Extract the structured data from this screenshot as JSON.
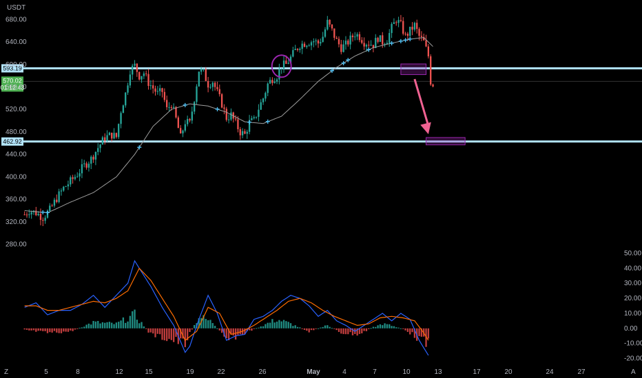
{
  "currency": "USDT",
  "corner_icons": {
    "left": "Z",
    "right": "A"
  },
  "colors": {
    "background": "#000000",
    "up": "#26a69a",
    "down": "#ef5350",
    "levels": "#b3e5fc",
    "sma": "#9e9e9e",
    "macd": "#2962ff",
    "signal": "#ff6d00",
    "highlight": "#9c27b0",
    "arrow": "#f06292",
    "marker": "#4fc3f7",
    "last_price": "#4caf50"
  },
  "chart_data": [
    {
      "type": "candlestick",
      "title": "",
      "ylabel": "USDT",
      "x_labels": [
        "5",
        "8",
        "12",
        "15",
        "19",
        "22",
        "26",
        "May",
        "4",
        "7",
        "10",
        "13",
        "17",
        "20",
        "24",
        "27"
      ],
      "y_ticks": [
        280,
        320,
        360,
        400,
        440,
        480,
        520,
        560,
        600,
        640,
        680
      ],
      "ylim": [
        272,
        705
      ],
      "levels": [
        {
          "value": 593.19,
          "label": "593.19"
        },
        {
          "value": 462.92,
          "label": "462.92"
        }
      ],
      "last_price": {
        "value": 570.02,
        "label": "570.02",
        "countdown": "01:12:43"
      },
      "close_path": [
        [
          0,
          333
        ],
        [
          2,
          340
        ],
        [
          5,
          336
        ],
        [
          8,
          328
        ],
        [
          11,
          341
        ],
        [
          14,
          362
        ],
        [
          17,
          380
        ],
        [
          20,
          392
        ],
        [
          23,
          405
        ],
        [
          26,
          420
        ],
        [
          29,
          432
        ],
        [
          32,
          452
        ],
        [
          35,
          470
        ],
        [
          38,
          475
        ],
        [
          40,
          471
        ],
        [
          42,
          518
        ],
        [
          44,
          548
        ],
        [
          46,
          590
        ],
        [
          48,
          598
        ],
        [
          50,
          580
        ],
        [
          52,
          585
        ],
        [
          54,
          568
        ],
        [
          56,
          558
        ],
        [
          58,
          548
        ],
        [
          60,
          552
        ],
        [
          62,
          520
        ],
        [
          64,
          530
        ],
        [
          66,
          503
        ],
        [
          68,
          470
        ],
        [
          70,
          498
        ],
        [
          72,
          495
        ],
        [
          74,
          540
        ],
        [
          76,
          590
        ],
        [
          78,
          585
        ],
        [
          80,
          565
        ],
        [
          82,
          570
        ],
        [
          84,
          550
        ],
        [
          86,
          530
        ],
        [
          88,
          505
        ],
        [
          90,
          510
        ],
        [
          92,
          495
        ],
        [
          94,
          480
        ],
        [
          96,
          475
        ],
        [
          98,
          497
        ],
        [
          100,
          500
        ],
        [
          102,
          522
        ],
        [
          104,
          540
        ],
        [
          106,
          565
        ],
        [
          108,
          575
        ],
        [
          110,
          580
        ],
        [
          112,
          598
        ],
        [
          114,
          600
        ],
        [
          116,
          612
        ],
        [
          118,
          625
        ],
        [
          120,
          635
        ],
        [
          122,
          638
        ],
        [
          124,
          640
        ],
        [
          126,
          642
        ],
        [
          128,
          638
        ],
        [
          130,
          650
        ],
        [
          132,
          675
        ],
        [
          134,
          660
        ],
        [
          136,
          642
        ],
        [
          138,
          630
        ],
        [
          140,
          635
        ],
        [
          142,
          645
        ],
        [
          144,
          655
        ],
        [
          146,
          650
        ],
        [
          148,
          640
        ],
        [
          150,
          638
        ],
        [
          152,
          635
        ],
        [
          154,
          648
        ],
        [
          156,
          640
        ],
        [
          158,
          645
        ],
        [
          160,
          665
        ],
        [
          162,
          680
        ],
        [
          164,
          670
        ],
        [
          166,
          650
        ],
        [
          168,
          660
        ],
        [
          170,
          670
        ],
        [
          172,
          650
        ],
        [
          174,
          640
        ],
        [
          176,
          615
        ],
        [
          177,
          570
        ],
        [
          178,
          565
        ]
      ],
      "sma_path": [
        [
          0,
          340
        ],
        [
          10,
          336
        ],
        [
          20,
          355
        ],
        [
          30,
          372
        ],
        [
          40,
          400
        ],
        [
          48,
          440
        ],
        [
          56,
          490
        ],
        [
          64,
          520
        ],
        [
          72,
          530
        ],
        [
          80,
          526
        ],
        [
          88,
          515
        ],
        [
          96,
          498
        ],
        [
          104,
          495
        ],
        [
          112,
          508
        ],
        [
          120,
          538
        ],
        [
          128,
          570
        ],
        [
          136,
          595
        ],
        [
          144,
          615
        ],
        [
          152,
          630
        ],
        [
          160,
          638
        ],
        [
          168,
          645
        ],
        [
          174,
          648
        ],
        [
          178,
          632
        ]
      ],
      "markers": [
        8,
        10,
        50,
        70,
        84,
        98,
        106,
        134,
        139,
        141,
        150,
        160,
        164,
        166,
        168
      ],
      "annotations": {
        "circle_at": {
          "x": 112,
          "y": 597
        },
        "box_top": {
          "x0": 164,
          "x1": 175,
          "y0": 582,
          "y1": 601
        },
        "box_target": {
          "x0": 175,
          "x1": 192,
          "y0": 457,
          "y1": 470
        },
        "arrow": {
          "from": [
            170,
            574
          ],
          "to": [
            176,
            476
          ]
        }
      }
    },
    {
      "type": "macd",
      "y_ticks": [
        50,
        40,
        30,
        20,
        10,
        0,
        -10,
        -20
      ],
      "ylim": [
        -23,
        53
      ],
      "macd_path": [
        [
          0,
          14
        ],
        [
          5,
          17
        ],
        [
          10,
          9
        ],
        [
          15,
          12
        ],
        [
          20,
          12
        ],
        [
          25,
          16
        ],
        [
          30,
          22
        ],
        [
          35,
          14
        ],
        [
          40,
          22
        ],
        [
          45,
          30
        ],
        [
          48,
          45
        ],
        [
          50,
          40
        ],
        [
          55,
          28
        ],
        [
          60,
          14
        ],
        [
          65,
          2
        ],
        [
          70,
          -16
        ],
        [
          72,
          -12
        ],
        [
          76,
          6
        ],
        [
          80,
          22
        ],
        [
          84,
          10
        ],
        [
          88,
          -8
        ],
        [
          92,
          -5
        ],
        [
          96,
          -4
        ],
        [
          100,
          6
        ],
        [
          104,
          8
        ],
        [
          108,
          12
        ],
        [
          112,
          18
        ],
        [
          116,
          22
        ],
        [
          120,
          20
        ],
        [
          124,
          15
        ],
        [
          128,
          8
        ],
        [
          132,
          12
        ],
        [
          136,
          5
        ],
        [
          140,
          2
        ],
        [
          144,
          -2
        ],
        [
          148,
          2
        ],
        [
          152,
          6
        ],
        [
          156,
          10
        ],
        [
          160,
          5
        ],
        [
          164,
          10
        ],
        [
          168,
          6
        ],
        [
          172,
          -8
        ],
        [
          176,
          -18
        ]
      ],
      "signal_path": [
        [
          0,
          15
        ],
        [
          5,
          15
        ],
        [
          10,
          12
        ],
        [
          15,
          12
        ],
        [
          20,
          14
        ],
        [
          25,
          16
        ],
        [
          30,
          18
        ],
        [
          35,
          17
        ],
        [
          40,
          20
        ],
        [
          45,
          25
        ],
        [
          50,
          40
        ],
        [
          55,
          32
        ],
        [
          60,
          20
        ],
        [
          65,
          8
        ],
        [
          70,
          -8
        ],
        [
          75,
          -2
        ],
        [
          80,
          14
        ],
        [
          85,
          10
        ],
        [
          90,
          -4
        ],
        [
          95,
          -2
        ],
        [
          100,
          2
        ],
        [
          105,
          7
        ],
        [
          110,
          12
        ],
        [
          115,
          18
        ],
        [
          120,
          20
        ],
        [
          125,
          17
        ],
        [
          130,
          12
        ],
        [
          135,
          8
        ],
        [
          140,
          5
        ],
        [
          145,
          2
        ],
        [
          150,
          3
        ],
        [
          155,
          7
        ],
        [
          160,
          8
        ],
        [
          165,
          7
        ],
        [
          170,
          5
        ],
        [
          174,
          -3
        ],
        [
          176,
          -8
        ]
      ],
      "histogram_path": [
        [
          0,
          -1
        ],
        [
          10,
          -3
        ],
        [
          20,
          -2
        ],
        [
          30,
          4
        ],
        [
          40,
          3
        ],
        [
          48,
          9
        ],
        [
          55,
          -4
        ],
        [
          65,
          -8
        ],
        [
          70,
          -10
        ],
        [
          76,
          8
        ],
        [
          82,
          4
        ],
        [
          88,
          -8
        ],
        [
          96,
          -3
        ],
        [
          104,
          2
        ],
        [
          110,
          6
        ],
        [
          116,
          3
        ],
        [
          124,
          -2
        ],
        [
          132,
          2
        ],
        [
          138,
          -3
        ],
        [
          146,
          -4
        ],
        [
          152,
          1
        ],
        [
          158,
          3
        ],
        [
          166,
          -1
        ],
        [
          172,
          -7
        ],
        [
          176,
          -11
        ]
      ]
    }
  ]
}
